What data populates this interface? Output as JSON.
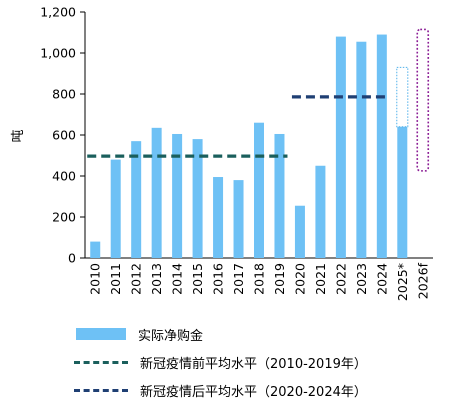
{
  "chart_data": {
    "type": "bar",
    "ylabel": "吨",
    "ylim": [
      0,
      1200
    ],
    "yticks": [
      "0",
      "200",
      "400",
      "600",
      "800",
      "1,000",
      "1,200"
    ],
    "categories": [
      "2010",
      "2011",
      "2012",
      "2013",
      "2014",
      "2015",
      "2016",
      "2017",
      "2018",
      "2019",
      "2020",
      "2021",
      "2022",
      "2023",
      "2024",
      "2025*",
      "2026f"
    ],
    "series": [
      {
        "name": "实际净购金",
        "values": [
          80,
          480,
          570,
          635,
          605,
          580,
          395,
          380,
          660,
          605,
          255,
          450,
          1080,
          1055,
          1090,
          640,
          null
        ]
      }
    ],
    "averages": [
      {
        "name": "新冠疫情前平均水平（2010-2019年）",
        "value": 497,
        "from": "2010",
        "to": "2019"
      },
      {
        "name": "新冠疫情后平均水平（2020-2024年）",
        "value": 786,
        "from": "2020",
        "to": "2024"
      }
    ],
    "ranges": [
      {
        "category": "2025*",
        "low": 640,
        "high": 930
      },
      {
        "category": "2026f",
        "low": 425,
        "high": 1115
      }
    ],
    "grid": false,
    "legend_position": "bottom"
  },
  "colors": {
    "bar": "#6ec1f5",
    "pre_avg": "#1a5f5c",
    "post_avg": "#1f3f73",
    "range_2025": "#4fb0ea",
    "range_2026": "#8b1d95",
    "axis": "#000000"
  },
  "legend": {
    "bar_label": "实际净购金",
    "pre_label": "新冠疫情前平均水平（2010-2019年）",
    "post_label": "新冠疫情后平均水平（2020-2024年）"
  }
}
